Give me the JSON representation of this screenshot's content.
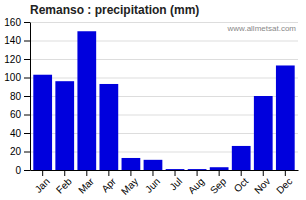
{
  "chart_data": {
    "type": "bar",
    "title": "Remanso : precipitation (mm)",
    "categories": [
      "Jan",
      "Feb",
      "Mar",
      "Apr",
      "May",
      "Jun",
      "Jul",
      "Aug",
      "Sep",
      "Oct",
      "Nov",
      "Dec"
    ],
    "values": [
      103,
      96,
      150,
      93,
      13,
      11,
      1,
      1,
      3,
      26,
      80,
      113
    ],
    "color": "#0000dd",
    "ylim": [
      0,
      160
    ],
    "yticks": [
      0,
      20,
      40,
      60,
      80,
      100,
      120,
      140,
      160
    ],
    "grid": true,
    "annotations": [
      "www.allmetsat.com"
    ]
  }
}
